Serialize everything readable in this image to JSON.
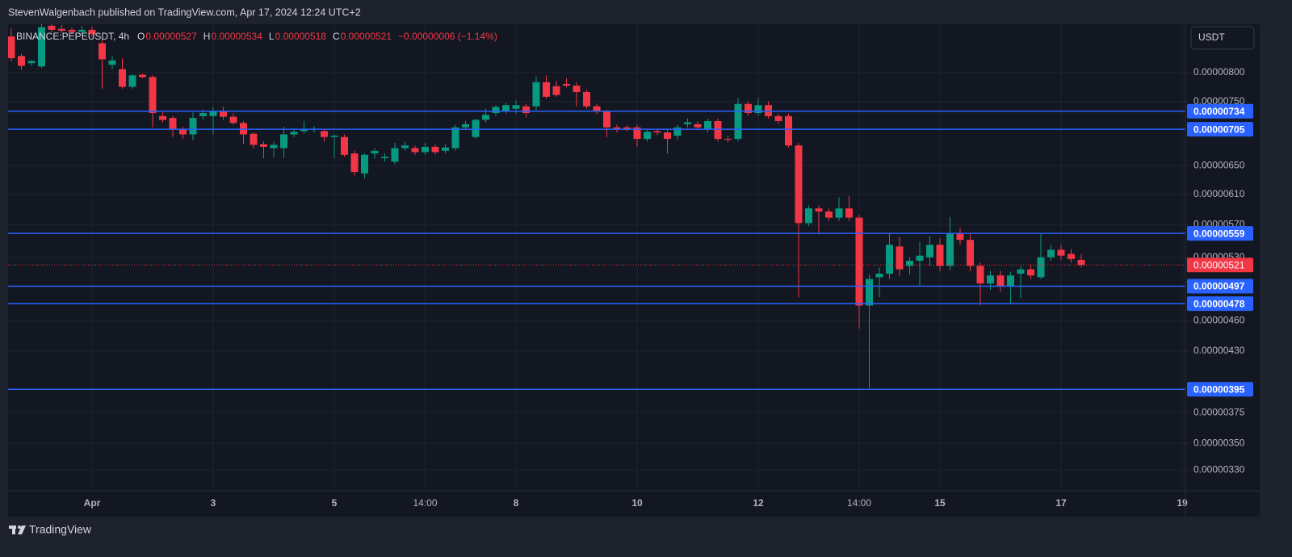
{
  "published": "StevenWalgenbach published on TradingView.com, Apr 17, 2024 12:24 UTC+2",
  "brand": "TradingView",
  "chart_data": {
    "type": "candlestick",
    "symbol": "BINANCE:PEPEUSDT, 4h",
    "ohlc_header": [
      {
        "key": "O",
        "value": "0.00000527"
      },
      {
        "key": "H",
        "value": "0.00000534"
      },
      {
        "key": "L",
        "value": "0.00000518"
      },
      {
        "key": "C",
        "value": "0.00000521"
      }
    ],
    "change": "−0.00000006 (−1.14%)",
    "currency": "USDT",
    "log_scale": true,
    "grid": true,
    "up_color": "#089981",
    "down_color": "#f23645",
    "level_color": "#2962ff",
    "categories": [
      null,
      null,
      null,
      null,
      null,
      null,
      null,
      null,
      "Apr",
      null,
      null,
      null,
      null,
      null,
      null,
      null,
      null,
      null,
      null,
      null,
      "3",
      null,
      null,
      null,
      null,
      null,
      null,
      null,
      null,
      null,
      null,
      null,
      "5",
      null,
      null,
      null,
      null,
      null,
      null,
      null,
      null,
      "14:00",
      null,
      null,
      null,
      null,
      null,
      null,
      null,
      null,
      "8",
      null,
      null,
      null,
      null,
      null,
      null,
      null,
      null,
      null,
      null,
      null,
      "10",
      null,
      null,
      null,
      null,
      null,
      null,
      null,
      null,
      null,
      null,
      null,
      "12",
      null,
      null,
      null,
      null,
      null,
      null,
      null,
      null,
      null,
      "14:00",
      null,
      null,
      null,
      null,
      null,
      null,
      null,
      "15",
      null,
      null,
      null,
      null,
      null,
      null,
      null,
      null,
      null,
      null,
      null,
      "17",
      null,
      null,
      null,
      null,
      null,
      null,
      null,
      null,
      null,
      null,
      null,
      "19"
    ],
    "open": [
      8.67e-06,
      8.3e-06,
      8.17e-06,
      8.11e-06,
      8.88e-06,
      8.82e-06,
      8.8e-06,
      8.76e-06,
      8.8e-06,
      8.54e-06,
      8.14e-06,
      8.06e-06,
      7.75e-06,
      7.96e-06,
      7.92e-06,
      7.26e-06,
      7.23e-06,
      7.05e-06,
      6.97e-06,
      7.26e-06,
      7.26e-06,
      7.34e-06,
      7.25e-06,
      7.15e-06,
      6.98e-06,
      6.82e-06,
      6.76e-06,
      6.76e-06,
      6.97e-06,
      7.02e-06,
      7.05e-06,
      7.02e-06,
      6.93e-06,
      6.93e-06,
      6.68e-06,
      6.39e-06,
      6.68e-06,
      6.61e-06,
      6.56e-06,
      6.76e-06,
      6.76e-06,
      6.7e-06,
      6.78e-06,
      6.72e-06,
      6.76e-06,
      7.08e-06,
      6.93e-06,
      7.2e-06,
      7.31e-06,
      7.33e-06,
      7.38e-06,
      7.42e-06,
      7.42e-06,
      7.83e-06,
      7.76e-06,
      7.8e-06,
      7.77e-06,
      7.66e-06,
      7.42e-06,
      7.33e-06,
      7.08e-06,
      7.08e-06,
      7.08e-06,
      6.9e-06,
      7.02e-06,
      7e-06,
      6.95e-06,
      7.13e-06,
      7.13e-06,
      7.05e-06,
      7.18e-06,
      6.9e-06,
      6.9e-06,
      7.46e-06,
      7.31e-06,
      7.44e-06,
      7.26e-06,
      7.26e-06,
      6.8e-06,
      5.72e-06,
      5.91e-06,
      5.87e-06,
      5.79e-06,
      5.91e-06,
      5.79e-06,
      4.76e-06,
      5.07e-06,
      5.11e-06,
      5.43e-06,
      5.2e-06,
      5.26e-06,
      5.3e-06,
      5.45e-06,
      5.2e-06,
      5.59e-06,
      5.51e-06,
      5.2e-06,
      5e-06,
      5.09e-06,
      4.97e-06,
      5.11e-06,
      5.16e-06,
      5.07e-06,
      5.3e-06,
      5.39e-06,
      5.34e-06,
      5.27e-06,
      null,
      null,
      null,
      null,
      null,
      null,
      null,
      null,
      null,
      null
    ],
    "high": [
      8.83e-06,
      8.34e-06,
      8.23e-06,
      8.95e-06,
      8.95e-06,
      8.9e-06,
      8.85e-06,
      8.88e-06,
      8.86e-06,
      8.62e-06,
      8.3e-06,
      8.26e-06,
      7.97e-06,
      7.98e-06,
      7.95e-06,
      7.32e-06,
      7.26e-06,
      7.09e-06,
      7.32e-06,
      7.37e-06,
      7.41e-06,
      7.41e-06,
      7.3e-06,
      7.18e-06,
      7e-06,
      6.86e-06,
      6.86e-06,
      7.09e-06,
      7.07e-06,
      7.18e-06,
      7.1e-06,
      7.05e-06,
      6.97e-06,
      6.97e-06,
      6.72e-06,
      6.68e-06,
      6.76e-06,
      6.68e-06,
      6.84e-06,
      6.86e-06,
      6.8e-06,
      6.84e-06,
      6.82e-06,
      6.82e-06,
      7.12e-06,
      7.18e-06,
      7.22e-06,
      7.38e-06,
      7.44e-06,
      7.48e-06,
      7.52e-06,
      7.46e-06,
      7.93e-06,
      7.95e-06,
      7.85e-06,
      7.9e-06,
      7.82e-06,
      7.7e-06,
      7.46e-06,
      7.36e-06,
      7.12e-06,
      7.11e-06,
      7.12e-06,
      7.05e-06,
      7.05e-06,
      7.05e-06,
      7.12e-06,
      7.22e-06,
      7.18e-06,
      7.22e-06,
      7.22e-06,
      6.94e-06,
      7.56e-06,
      7.5e-06,
      7.56e-06,
      7.5e-06,
      7.3e-06,
      7.3e-06,
      6.84e-06,
      5.95e-06,
      5.95e-06,
      5.91e-06,
      6.06e-06,
      6.08e-06,
      5.83e-06,
      5.1e-06,
      5.18e-06,
      5.59e-06,
      5.55e-06,
      5.3e-06,
      5.49e-06,
      5.56e-06,
      5.53e-06,
      5.8e-06,
      5.66e-06,
      5.6e-06,
      5.24e-06,
      5.14e-06,
      5.14e-06,
      5.13e-06,
      5.2e-06,
      5.22e-06,
      5.59e-06,
      5.45e-06,
      5.45e-06,
      5.4e-06,
      5.34e-06,
      null,
      null,
      null,
      null,
      null,
      null,
      null,
      null,
      null,
      null
    ],
    "low": [
      8.2e-06,
      8.05e-06,
      8.12e-06,
      8.08e-06,
      8.76e-06,
      8.74e-06,
      8.72e-06,
      8.7e-06,
      8.66e-06,
      7.72e-06,
      8.06e-06,
      7.72e-06,
      7.72e-06,
      7.9e-06,
      7.08e-06,
      7.16e-06,
      6.93e-06,
      6.9e-06,
      6.88e-06,
      7.2e-06,
      6.97e-06,
      7.2e-06,
      7.12e-06,
      6.82e-06,
      6.75e-06,
      6.61e-06,
      6.63e-06,
      6.61e-06,
      6.93e-06,
      6.98e-06,
      7e-06,
      6.86e-06,
      6.61e-06,
      6.63e-06,
      6.36e-06,
      6.32e-06,
      6.6e-06,
      6.56e-06,
      6.52e-06,
      6.72e-06,
      6.66e-06,
      6.66e-06,
      6.66e-06,
      6.68e-06,
      6.72e-06,
      7.04e-06,
      6.9e-06,
      7.16e-06,
      7.26e-06,
      7.3e-06,
      7.3e-06,
      7.24e-06,
      7.36e-06,
      7.55e-06,
      7.58e-06,
      7.74e-06,
      7.42e-06,
      7.38e-06,
      7.29e-06,
      6.93e-06,
      7e-06,
      7.02e-06,
      6.78e-06,
      6.86e-06,
      6.96e-06,
      6.68e-06,
      6.88e-06,
      7.08e-06,
      7.05e-06,
      7e-06,
      6.86e-06,
      6.85e-06,
      6.86e-06,
      7.27e-06,
      7.27e-06,
      7.22e-06,
      7.14e-06,
      6.77e-06,
      4.85e-06,
      5.68e-06,
      5.59e-06,
      5.75e-06,
      5.75e-06,
      5.75e-06,
      4.52e-06,
      3.95e-06,
      4.85e-06,
      5.05e-06,
      5.08e-06,
      5.1e-06,
      4.98e-06,
      5.2e-06,
      5.14e-06,
      5.15e-06,
      5.45e-06,
      5.14e-06,
      4.76e-06,
      4.93e-06,
      4.91e-06,
      4.78e-06,
      4.84e-06,
      5.05e-06,
      5.05e-06,
      5.26e-06,
      5.27e-06,
      5.24e-06,
      5.18e-06,
      null,
      null,
      null,
      null,
      null,
      null,
      null,
      null,
      null,
      null
    ],
    "close": [
      8.26e-06,
      8.12e-06,
      8.21e-06,
      8.85e-06,
      8.8e-06,
      8.78e-06,
      8.76e-06,
      8.8e-06,
      8.72e-06,
      8.24e-06,
      8.22e-06,
      7.75e-06,
      7.95e-06,
      7.92e-06,
      7.31e-06,
      7.2e-06,
      7.05e-06,
      6.97e-06,
      7.23e-06,
      7.31e-06,
      7.33e-06,
      7.25e-06,
      7.15e-06,
      6.97e-06,
      6.81e-06,
      6.78e-06,
      6.81e-06,
      6.97e-06,
      7.01e-06,
      7.05e-06,
      7.06e-06,
      6.93e-06,
      6.95e-06,
      6.66e-06,
      6.41e-06,
      6.66e-06,
      6.72e-06,
      6.63e-06,
      6.76e-06,
      6.8e-06,
      6.7e-06,
      6.78e-06,
      6.7e-06,
      6.77e-06,
      7.08e-06,
      7.13e-06,
      7.2e-06,
      7.28e-06,
      7.41e-06,
      7.44e-06,
      7.44e-06,
      7.31e-06,
      7.83e-06,
      7.58e-06,
      7.61e-06,
      7.77e-06,
      7.66e-06,
      7.42e-06,
      7.33e-06,
      7.08e-06,
      7.05e-06,
      7.05e-06,
      6.9e-06,
      7.01e-06,
      7e-06,
      6.9e-06,
      7.08e-06,
      7.16e-06,
      7.08e-06,
      7.18e-06,
      6.9e-06,
      6.89e-06,
      7.46e-06,
      7.31e-06,
      7.44e-06,
      7.26e-06,
      7.18e-06,
      6.8e-06,
      5.72e-06,
      5.91e-06,
      5.87e-06,
      5.79e-06,
      5.91e-06,
      5.79e-06,
      4.76e-06,
      5.05e-06,
      5.11e-06,
      5.45e-06,
      5.16e-06,
      5.26e-06,
      5.32e-06,
      5.45e-06,
      5.2e-06,
      5.59e-06,
      5.51e-06,
      5.2e-06,
      5e-06,
      5.09e-06,
      4.97e-06,
      5.09e-06,
      5.16e-06,
      5.09e-06,
      5.3e-06,
      5.39e-06,
      5.32e-06,
      5.28e-06,
      5.21e-06,
      null,
      null,
      null,
      null,
      null,
      null,
      null,
      null,
      null,
      null
    ],
    "ylim": [
      3.15e-06,
      8.91e-06
    ],
    "yticks": [
      {
        "value": 8e-06,
        "label": "0.00000800"
      },
      {
        "value": 7.5e-06,
        "label": "0.00000750"
      },
      {
        "value": 6.5e-06,
        "label": "0.00000650"
      },
      {
        "value": 6.1e-06,
        "label": "0.00000610"
      },
      {
        "value": 5.7e-06,
        "label": "0.00000570"
      },
      {
        "value": 5.3e-06,
        "label": "0.00000530"
      },
      {
        "value": 4.6e-06,
        "label": "0.00000460"
      },
      {
        "value": 4.3e-06,
        "label": "0.00000430"
      },
      {
        "value": 3.75e-06,
        "label": "0.00000375"
      },
      {
        "value": 3.5e-06,
        "label": "0.00000350"
      },
      {
        "value": 3.3e-06,
        "label": "0.00000330"
      }
    ],
    "levels": [
      {
        "value": 7.34e-06,
        "label": "0.00000734"
      },
      {
        "value": 7.05e-06,
        "label": "0.00000705"
      },
      {
        "value": 5.59e-06,
        "label": "0.00000559"
      },
      {
        "value": 4.97e-06,
        "label": "0.00000497"
      },
      {
        "value": 4.78e-06,
        "label": "0.00000478"
      },
      {
        "value": 3.95e-06,
        "label": "0.00000395"
      }
    ],
    "last_price": {
      "value": 5.21e-06,
      "label": "0.00000521"
    }
  }
}
